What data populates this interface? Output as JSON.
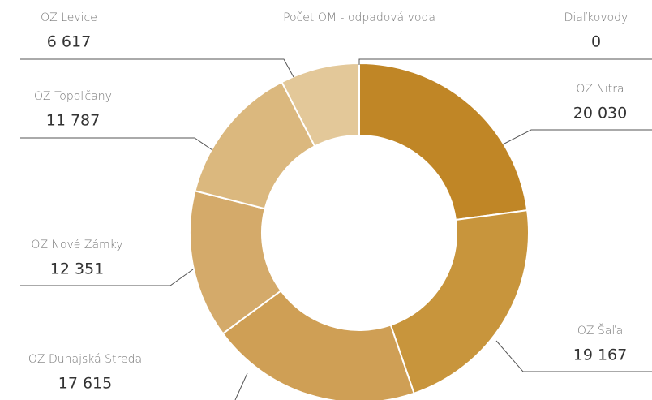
{
  "chart_data": {
    "type": "donut",
    "title": "Počet OM - odpadová voda",
    "categories": [
      "Diaľkovody",
      "OZ Nitra",
      "OZ Šaľa",
      "OZ Dunajská Streda",
      "OZ Nové Zámky",
      "OZ Topoľčany",
      "OZ Levice"
    ],
    "values": [
      0,
      20030,
      19167,
      17615,
      12351,
      11787,
      6617
    ],
    "value_labels": [
      "0",
      "20 030",
      "19 167",
      "17 615",
      "12 351",
      "11 787",
      "6 617"
    ],
    "colors": [
      "#e8d4ae",
      "#c08626",
      "#c8953c",
      "#cf9f55",
      "#d4aa6a",
      "#dbb87e",
      "#e3c899"
    ]
  }
}
